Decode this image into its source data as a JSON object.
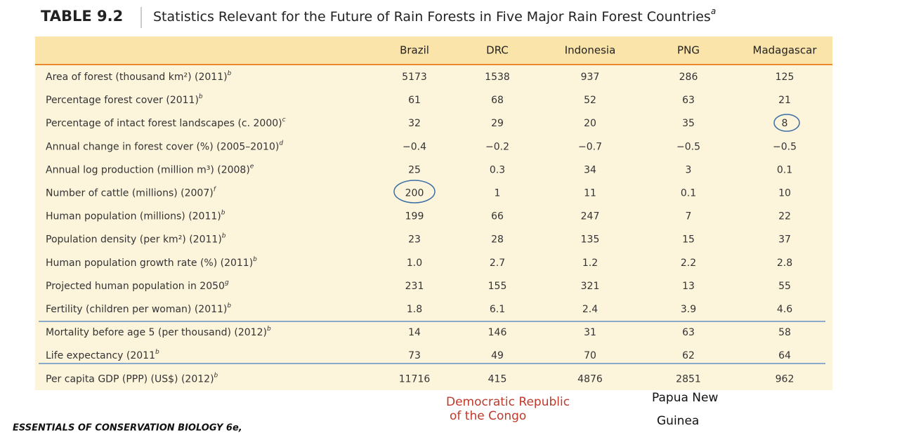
{
  "header": {
    "title": "TABLE 9.2",
    "caption": "Statistics Relevant for the Future of Rain Forests in Five Major Rain Forest Countries",
    "caption_note": "a"
  },
  "table": {
    "columns": [
      "Brazil",
      "DRC",
      "Indonesia",
      "PNG",
      "Madagascar"
    ],
    "rows": [
      {
        "label": "Area of forest (thousand km²) (2011)",
        "note": "b",
        "values": [
          "5173",
          "1538",
          "937",
          "286",
          "125"
        ]
      },
      {
        "label": "Percentage forest cover (2011)",
        "note": "b",
        "values": [
          "61",
          "68",
          "52",
          "63",
          "21"
        ]
      },
      {
        "label": "Percentage of intact forest landscapes (c. 2000)",
        "note": "c",
        "values": [
          "32",
          "29",
          "20",
          "35",
          "8"
        ]
      },
      {
        "label": "Annual change in forest cover (%) (2005–2010)",
        "note": "d",
        "values": [
          "−0.4",
          "−0.2",
          "−0.7",
          "−0.5",
          "−0.5"
        ]
      },
      {
        "label": "Annual log production (million m³) (2008)",
        "note": "e",
        "values": [
          "25",
          "0.3",
          "34",
          "3",
          "0.1"
        ]
      },
      {
        "label": "Number of cattle (millions) (2007)",
        "note": "f",
        "values": [
          "200",
          "1",
          "11",
          "0.1",
          "10"
        ]
      },
      {
        "label": "Human population (millions) (2011)",
        "note": "b",
        "values": [
          "199",
          "66",
          "247",
          "7",
          "22"
        ]
      },
      {
        "label": "Population density (per km²) (2011)",
        "note": "b",
        "values": [
          "23",
          "28",
          "135",
          "15",
          "37"
        ]
      },
      {
        "label": "Human population growth rate (%) (2011)",
        "note": "b",
        "values": [
          "1.0",
          "2.7",
          "1.2",
          "2.2",
          "2.8"
        ]
      },
      {
        "label": "Projected human population in 2050",
        "note": "g",
        "values": [
          "231",
          "155",
          "321",
          "13",
          "55"
        ]
      },
      {
        "label": "Fertility (children per woman) (2011)",
        "note": "b",
        "values": [
          "1.8",
          "6.1",
          "2.4",
          "3.9",
          "4.6"
        ]
      },
      {
        "label": "Mortality before age 5 (per thousand) (2012)",
        "note": "b",
        "values": [
          "14",
          "146",
          "31",
          "63",
          "58"
        ]
      },
      {
        "label": "Life expectancy (2011",
        "note": "b",
        "values": [
          "73",
          "49",
          "70",
          "62",
          "64"
        ]
      },
      {
        "label": "Per capita GDP (PPP) (US$) (2012)",
        "note": "b",
        "values": [
          "11716",
          "415",
          "4876",
          "2851",
          "962"
        ]
      }
    ]
  },
  "annotations": {
    "drc": [
      "Democratic Republic",
      "of the Congo"
    ],
    "png": [
      "Papua New",
      "Guinea"
    ]
  },
  "footer": "ESSENTIALS OF CONSERVATION BIOLOGY 6e,"
}
